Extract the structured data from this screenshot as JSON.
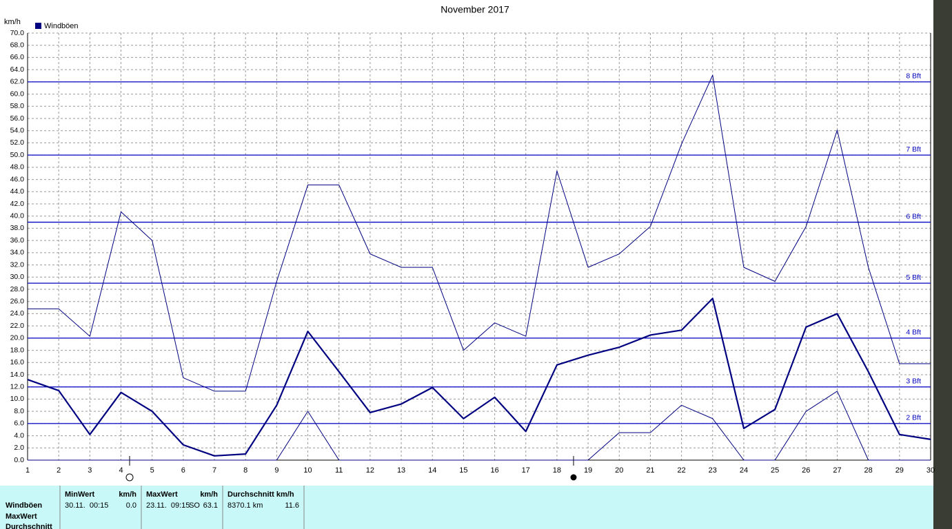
{
  "chart_data": {
    "type": "line",
    "title": "November 2017",
    "y_label": "km/h",
    "xlim": [
      1,
      30
    ],
    "xticks": [
      1,
      2,
      3,
      4,
      5,
      6,
      7,
      8,
      9,
      10,
      11,
      12,
      13,
      14,
      15,
      16,
      17,
      18,
      19,
      20,
      21,
      22,
      23,
      24,
      25,
      26,
      27,
      28,
      29,
      30
    ],
    "x": [
      1,
      2,
      3,
      4,
      5,
      6,
      7,
      8,
      9,
      10,
      11,
      12,
      13,
      14,
      15,
      16,
      17,
      18,
      19,
      20,
      21,
      22,
      23,
      24,
      25,
      26,
      27,
      28,
      29,
      30
    ],
    "ylim": [
      0,
      70
    ],
    "yticks": [
      {
        "value": 0,
        "label": "0.0"
      },
      {
        "value": 2,
        "label": "2.0"
      },
      {
        "value": 4,
        "label": "4.0"
      },
      {
        "value": 6,
        "label": "6.0"
      },
      {
        "value": 8,
        "label": "8.0"
      },
      {
        "value": 10,
        "label": "10.0"
      },
      {
        "value": 12,
        "label": "12.0"
      },
      {
        "value": 14,
        "label": "14.0"
      },
      {
        "value": 16,
        "label": "16.0"
      },
      {
        "value": 18,
        "label": "18.0"
      },
      {
        "value": 20,
        "label": "20.0"
      },
      {
        "value": 22,
        "label": "22.0"
      },
      {
        "value": 24,
        "label": "24.0"
      },
      {
        "value": 26,
        "label": "26.0"
      },
      {
        "value": 28,
        "label": "28.0"
      },
      {
        "value": 30,
        "label": "30.0"
      },
      {
        "value": 32,
        "label": "32.0"
      },
      {
        "value": 34,
        "label": "34.0"
      },
      {
        "value": 36,
        "label": "36.0"
      },
      {
        "value": 38,
        "label": "38.0"
      },
      {
        "value": 40,
        "label": "40.0"
      },
      {
        "value": 42,
        "label": "42.0"
      },
      {
        "value": 44,
        "label": "44.0"
      },
      {
        "value": 46,
        "label": "46.0"
      },
      {
        "value": 48,
        "label": "48.0"
      },
      {
        "value": 50,
        "label": "50.0"
      },
      {
        "value": 52,
        "label": "52.0"
      },
      {
        "value": 54,
        "label": "54.0"
      },
      {
        "value": 56,
        "label": "56.0"
      },
      {
        "value": 58,
        "label": "58.0"
      },
      {
        "value": 60,
        "label": "60.0"
      },
      {
        "value": 62,
        "label": "62.0"
      },
      {
        "value": 64,
        "label": "64.0"
      },
      {
        "value": 66,
        "label": "66.0"
      },
      {
        "value": 68,
        "label": "68.0"
      },
      {
        "value": 70,
        "label": "70.0"
      }
    ],
    "grid": true,
    "series": [
      {
        "name": "Windböen",
        "color": "#000080",
        "values": [
          13.2,
          11.4,
          4.2,
          11.1,
          8.0,
          2.5,
          0.7,
          1.0,
          9.0,
          21.1,
          14.5,
          7.8,
          9.2,
          11.9,
          6.8,
          10.3,
          4.7,
          15.6,
          17.2,
          18.5,
          20.5,
          21.3,
          26.5,
          5.2,
          8.3,
          21.8,
          24.0,
          14.5,
          4.2,
          3.4
        ]
      }
    ],
    "upper_band": {
      "color": "#000080",
      "values": [
        24.8,
        24.8,
        20.3,
        40.7,
        36.0,
        13.5,
        11.3,
        11.3,
        29.3,
        45.1,
        45.1,
        33.8,
        31.6,
        31.6,
        18.0,
        22.5,
        20.3,
        47.4,
        31.6,
        33.8,
        38.3,
        51.8,
        63.1,
        31.6,
        29.3,
        38.3,
        54.1,
        31.6,
        15.8,
        15.8
      ]
    },
    "lower_band": {
      "color": "#000080",
      "values": [
        0,
        0,
        0,
        0,
        0,
        0,
        0,
        0,
        0,
        8.0,
        0,
        0,
        0,
        0,
        0,
        0,
        0,
        0,
        0,
        4.5,
        4.5,
        9.0,
        6.8,
        0,
        0,
        8.0,
        11.3,
        0,
        0,
        0
      ]
    },
    "beaufort_lines": {
      "color": "#0000c0",
      "levels": [
        {
          "value": 6,
          "label": "2 Bft"
        },
        {
          "value": 12,
          "label": "3 Bft"
        },
        {
          "value": 20,
          "label": "4 Bft"
        },
        {
          "value": 29,
          "label": "5 Bft"
        },
        {
          "value": 39,
          "label": "6 Bft"
        },
        {
          "value": 50,
          "label": "7 Bft"
        },
        {
          "value": 62,
          "label": "8 Bft"
        }
      ]
    }
  },
  "stats_table": {
    "headers": [
      "MinWert",
      "km/h",
      "MaxWert",
      "km/h",
      "Durchschnitt km/h"
    ],
    "row_labels": [
      "Windböen",
      "MaxWert",
      "Durchschnitt"
    ],
    "row": [
      "30.11.  00:15",
      "0.0",
      "23.11.  09:15",
      "SO",
      "63.1",
      "8370.1 km",
      "11.6"
    ]
  }
}
